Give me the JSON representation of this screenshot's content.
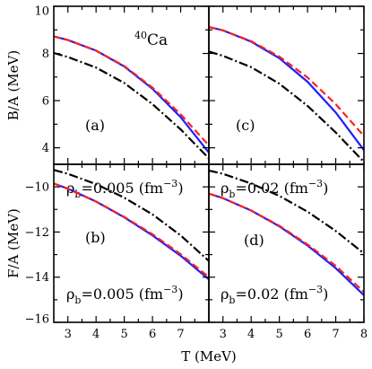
{
  "nucleus": {
    "mass": "40",
    "symbol": "Ca"
  },
  "chart_data": {
    "type": "line",
    "xlabel": "T (MeV)",
    "x_ticks": [
      3,
      4,
      5,
      6,
      7,
      8
    ],
    "xlim": [
      2.5,
      8
    ],
    "grid": false,
    "legend": "none",
    "series_styles": [
      {
        "color": "#1f1fff",
        "dash": "solid"
      },
      {
        "color": "#ff2020",
        "dash": "dashed"
      },
      {
        "color": "#000000",
        "dash": "dash-dot"
      }
    ],
    "panels": [
      {
        "tag": "(a)",
        "density": "0.005",
        "ylabel": "B/A (MeV)",
        "ylim": [
          3.3,
          10
        ],
        "y_ticks": [
          4,
          6,
          8,
          10
        ],
        "show_ylabels": true,
        "x": [
          2.5,
          3,
          4,
          5,
          6,
          7,
          8
        ],
        "series": [
          {
            "values": [
              8.72,
              8.57,
              8.12,
              7.45,
              6.5,
              5.3,
              3.8
            ]
          },
          {
            "values": [
              8.72,
              8.57,
              8.12,
              7.47,
              6.55,
              5.42,
              4.1
            ]
          },
          {
            "values": [
              8.02,
              7.85,
              7.4,
              6.75,
              5.85,
              4.78,
              3.55
            ]
          }
        ]
      },
      {
        "tag": "(b)",
        "density": "0.005",
        "ylabel": "F/A (MeV)",
        "ylim": [
          -16,
          -9
        ],
        "y_ticks": [
          -10,
          -12,
          -14,
          -16
        ],
        "show_ylabels": true,
        "x": [
          2.5,
          3,
          4,
          5,
          6,
          7,
          8
        ],
        "series": [
          {
            "values": [
              -9.85,
              -10.08,
              -10.65,
              -11.35,
              -12.15,
              -13.05,
              -14.1
            ]
          },
          {
            "values": [
              -9.85,
              -10.08,
              -10.65,
              -11.33,
              -12.1,
              -12.98,
              -14.0
            ]
          },
          {
            "values": [
              -9.25,
              -9.42,
              -9.88,
              -10.48,
              -11.22,
              -12.15,
              -13.28
            ]
          }
        ]
      },
      {
        "tag": "(c)",
        "density": "0.02",
        "ylim": [
          3.3,
          10
        ],
        "y_ticks": [
          4,
          6,
          8,
          10
        ],
        "show_ylabels": false,
        "x": [
          2.5,
          3,
          4,
          5,
          6,
          7,
          8
        ],
        "series": [
          {
            "values": [
              9.12,
              8.98,
              8.5,
              7.8,
              6.8,
              5.5,
              3.9
            ]
          },
          {
            "values": [
              9.12,
              8.98,
              8.52,
              7.87,
              6.98,
              5.85,
              4.5
            ]
          },
          {
            "values": [
              8.08,
              7.9,
              7.42,
              6.72,
              5.78,
              4.65,
              3.4
            ]
          }
        ]
      },
      {
        "tag": "(d)",
        "density": "0.02",
        "ylim": [
          -16,
          -9
        ],
        "y_ticks": [
          -10,
          -12,
          -14,
          -16
        ],
        "show_ylabels": false,
        "x": [
          2.5,
          3,
          4,
          5,
          6,
          7,
          8
        ],
        "series": [
          {
            "values": [
              -10.3,
              -10.5,
              -11.05,
              -11.75,
              -12.6,
              -13.6,
              -14.8
            ]
          },
          {
            "values": [
              -10.3,
              -10.5,
              -11.05,
              -11.72,
              -12.55,
              -13.5,
              -14.65
            ]
          },
          {
            "values": [
              -9.28,
              -9.42,
              -9.85,
              -10.4,
              -11.1,
              -11.95,
              -12.95
            ]
          }
        ]
      }
    ]
  }
}
